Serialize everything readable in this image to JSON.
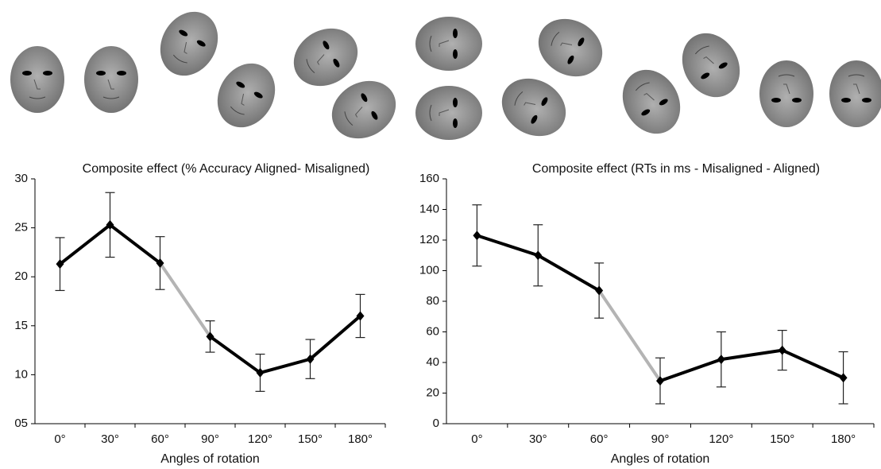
{
  "chart_data": [
    {
      "type": "line",
      "title": "Composite effect (% Accuracy Aligned- Misaligned)",
      "x_label": "Angles of rotation",
      "categories": [
        "0°",
        "30°",
        "60°",
        "90°",
        "120°",
        "150°",
        "180°"
      ],
      "values": [
        21.3,
        25.3,
        21.4,
        13.9,
        10.2,
        11.6,
        16.0
      ],
      "errors": [
        2.7,
        3.3,
        2.7,
        1.6,
        1.9,
        2.0,
        2.2
      ],
      "color": "#000000",
      "connector_colors": [
        "#000000",
        "#000000",
        "#b4b4b4",
        "#000000",
        "#000000",
        "#000000"
      ],
      "ylim": [
        5,
        30
      ],
      "yticks": [
        {
          "value": 5,
          "label": "05"
        },
        10,
        15,
        20,
        25,
        30
      ]
    },
    {
      "type": "line",
      "title": "Composite effect (RTs in ms - Misaligned - Aligned)",
      "x_label": "Angles of rotation",
      "categories": [
        "0°",
        "30°",
        "60°",
        "90°",
        "120°",
        "150°",
        "180°"
      ],
      "values": [
        123,
        110,
        87,
        28,
        42,
        48,
        30
      ],
      "errors": [
        20,
        20,
        18,
        15,
        18,
        13,
        17
      ],
      "color": "#000000",
      "connector_colors": [
        "#000000",
        "#000000",
        "#b4b4b4",
        "#000000",
        "#000000",
        "#000000"
      ],
      "ylim": [
        0,
        160
      ],
      "yticks": [
        0,
        20,
        40,
        60,
        80,
        100,
        120,
        140,
        160
      ]
    }
  ]
}
